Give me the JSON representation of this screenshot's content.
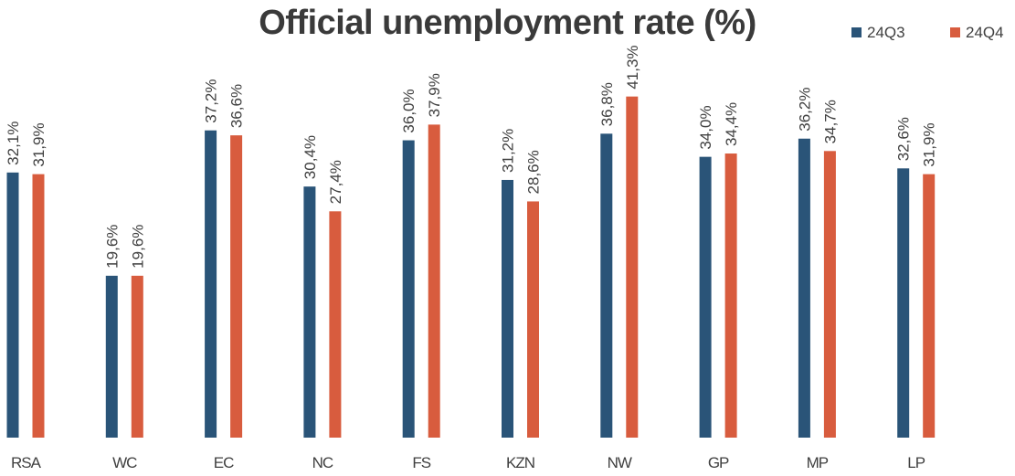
{
  "colors": {
    "24Q3": "#2a5478",
    "24Q4": "#d85c3e"
  },
  "chart_data": {
    "type": "bar",
    "title": "Official unemployment rate (%)",
    "xlabel": "",
    "ylabel": "",
    "ylim": [
      0,
      45
    ],
    "grid": false,
    "legend_position": "top-right",
    "categories": [
      "RSA",
      "WC",
      "EC",
      "NC",
      "FS",
      "KZN",
      "NW",
      "GP",
      "MP",
      "LP"
    ],
    "series": [
      {
        "name": "24Q3",
        "values": [
          32.1,
          19.6,
          37.2,
          30.4,
          36.0,
          31.2,
          36.8,
          34.0,
          36.2,
          32.6
        ],
        "labels": [
          "32,1%",
          "19,6%",
          "37,2%",
          "30,4%",
          "36,0%",
          "31,2%",
          "36,8%",
          "34,0%",
          "36,2%",
          "32,6%"
        ]
      },
      {
        "name": "24Q4",
        "values": [
          31.9,
          19.6,
          36.6,
          27.4,
          37.9,
          28.6,
          41.3,
          34.4,
          34.7,
          31.9
        ],
        "labels": [
          "31,9%",
          "19,6%",
          "36,6%",
          "27,4%",
          "37,9%",
          "28,6%",
          "41,3%",
          "34,4%",
          "34,7%",
          "31,9%"
        ]
      }
    ]
  }
}
